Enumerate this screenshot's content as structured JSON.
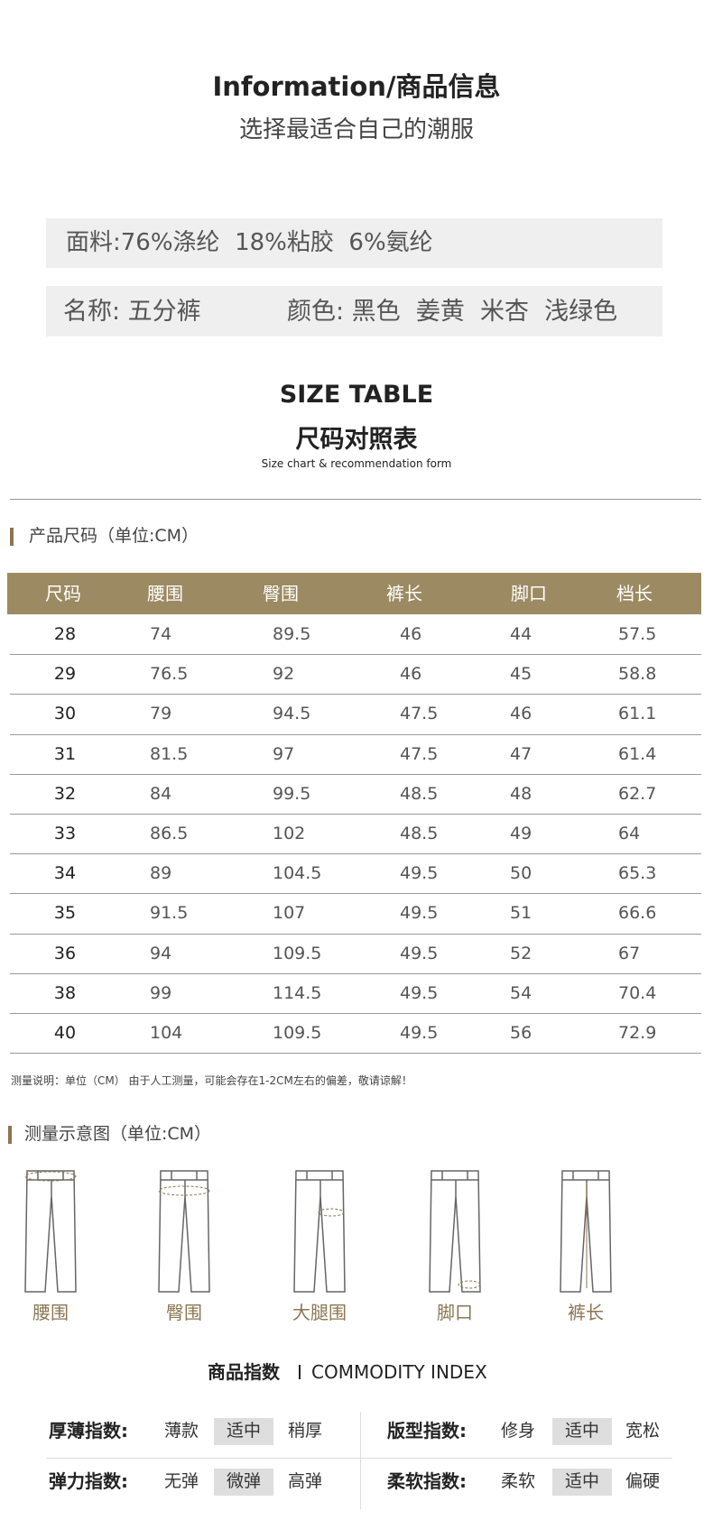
{
  "header": {
    "title": "Information/商品信息",
    "subtitle": "选择最适合自己的潮服"
  },
  "info": {
    "material": "面料:76%涤纶  18%粘胶  6%氨纶",
    "name": "名称: 五分裤",
    "colors": "颜色: 黑色  姜黄  米杏  浅绿色"
  },
  "size_section": {
    "title": "SIZE TABLE",
    "title_cn": "尺码对照表",
    "caption": "Size chart & recommendation form"
  },
  "size_table": {
    "heading": "产品尺码（单位:CM）",
    "columns": [
      "尺码",
      "腰围",
      "臀围",
      "裤长",
      "脚口",
      "档长"
    ],
    "rows": [
      [
        28,
        74,
        89.5,
        46,
        44,
        57.5
      ],
      [
        29,
        76.5,
        92,
        46,
        45,
        58.8
      ],
      [
        30,
        79,
        94.5,
        47.5,
        46,
        61.1
      ],
      [
        31,
        81.5,
        97,
        47.5,
        47,
        61.4
      ],
      [
        32,
        84,
        99.5,
        48.5,
        48,
        62.7
      ],
      [
        33,
        86.5,
        102,
        48.5,
        49,
        64
      ],
      [
        34,
        89,
        104.5,
        49.5,
        50,
        65.3
      ],
      [
        35,
        91.5,
        107,
        49.5,
        51,
        66.6
      ],
      [
        36,
        94,
        109.5,
        49.5,
        52,
        67
      ],
      [
        38,
        99,
        114.5,
        49.5,
        54,
        70.4
      ],
      [
        40,
        104,
        109.5,
        49.5,
        56,
        72.9
      ]
    ]
  },
  "note": "测量说明：单位（CM） 由于人工测量，可能会存在1-2CM左右的偏差，敬请谅解！",
  "measure": {
    "heading": "测量示意图（单位:CM）",
    "items": [
      "腰围",
      "臀围",
      "大腿围",
      "脚口",
      "裤长"
    ]
  },
  "index": {
    "title": "商品指数",
    "title_en": "COMMODITY INDEX",
    "groups": [
      {
        "label": "厚薄指数:",
        "options": [
          "薄款",
          "适中",
          "稍厚"
        ],
        "selected": 1
      },
      {
        "label": "版型指数:",
        "options": [
          "修身",
          "适中",
          "宽松"
        ],
        "selected": 1
      },
      {
        "label": "弹力指数:",
        "options": [
          "无弹",
          "微弹",
          "高弹"
        ],
        "selected": 1
      },
      {
        "label": "柔软指数:",
        "options": [
          "柔软",
          "适中",
          "偏硬"
        ],
        "selected": 1
      }
    ]
  }
}
